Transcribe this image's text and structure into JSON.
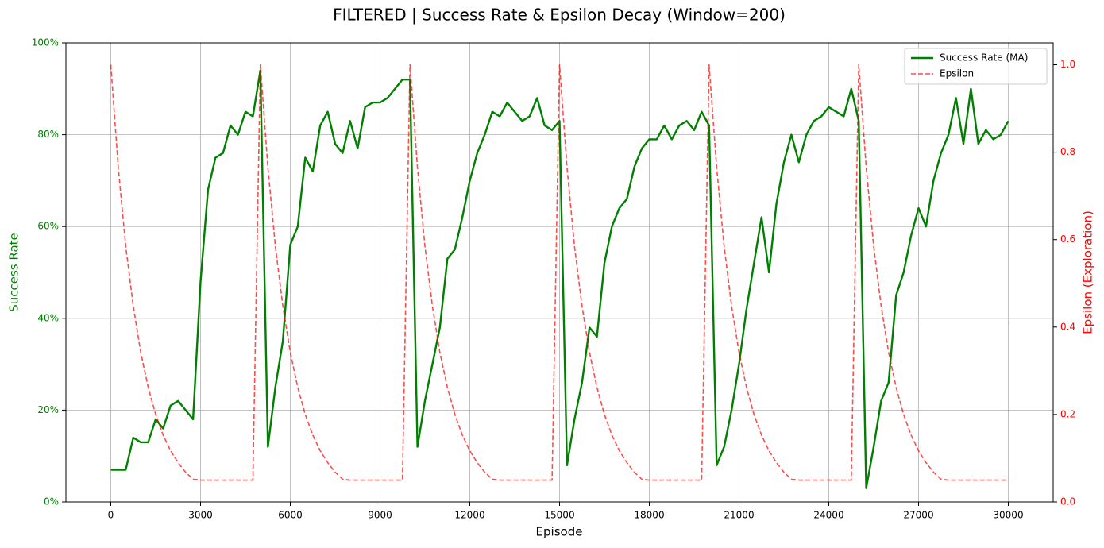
{
  "chart_data": {
    "type": "line",
    "title": "FILTERED | Success Rate & Epsilon Decay (Window=200)",
    "xlabel": "Episode",
    "ylabel": "Success Rate",
    "y2label": "Epsilon (Exploration)",
    "x": [
      0,
      250,
      500,
      750,
      1000,
      1250,
      1500,
      1750,
      2000,
      2250,
      2500,
      2750,
      3000,
      3250,
      3500,
      3750,
      4000,
      4250,
      4500,
      4750,
      5000,
      5250,
      5500,
      5750,
      6000,
      6250,
      6500,
      6750,
      7000,
      7250,
      7500,
      7750,
      8000,
      8250,
      8500,
      8750,
      9000,
      9250,
      9500,
      9750,
      10000,
      10250,
      10500,
      10750,
      11000,
      11250,
      11500,
      11750,
      12000,
      12250,
      12500,
      12750,
      13000,
      13250,
      13500,
      13750,
      14000,
      14250,
      14500,
      14750,
      15000,
      15250,
      15500,
      15750,
      16000,
      16250,
      16500,
      16750,
      17000,
      17250,
      17500,
      17750,
      18000,
      18250,
      18500,
      18750,
      19000,
      19250,
      19500,
      19750,
      20000,
      20250,
      20500,
      20750,
      21000,
      21250,
      21500,
      21750,
      22000,
      22250,
      22500,
      22750,
      23000,
      23250,
      23500,
      23750,
      24000,
      24250,
      24500,
      24750,
      25000,
      25250,
      25500,
      25750,
      26000,
      26250,
      26500,
      26750,
      27000,
      27250,
      27500,
      27750,
      28000,
      28250,
      28500,
      28750,
      29000,
      29250,
      29500,
      29750,
      30000
    ],
    "series": [
      {
        "name": "Success Rate (MA)",
        "color": "#008000",
        "line_style": "solid",
        "axis": "y",
        "values": [
          7,
          7,
          7,
          14,
          13,
          13,
          18,
          16,
          21,
          22,
          20,
          18,
          48,
          68,
          75,
          76,
          82,
          80,
          85,
          84,
          94,
          12,
          25,
          35,
          56,
          60,
          75,
          72,
          82,
          85,
          78,
          76,
          83,
          77,
          86,
          87,
          87,
          88,
          90,
          92,
          92,
          12,
          22,
          30,
          38,
          53,
          55,
          62,
          70,
          76,
          80,
          85,
          84,
          87,
          85,
          83,
          84,
          88,
          82,
          81,
          83,
          8,
          18,
          26,
          38,
          36,
          52,
          60,
          64,
          66,
          73,
          77,
          79,
          79,
          82,
          79,
          82,
          83,
          81,
          85,
          82,
          8,
          12,
          20,
          30,
          42,
          52,
          62,
          50,
          65,
          74,
          80,
          74,
          80,
          83,
          84,
          86,
          85,
          84,
          90,
          83,
          3,
          12,
          22,
          26,
          45,
          50,
          58,
          64,
          60,
          70,
          76,
          80,
          88,
          78,
          90,
          78,
          81,
          79,
          80,
          83
        ]
      },
      {
        "name": "Epsilon",
        "color": "#ff0000",
        "line_style": "dashed",
        "axis": "y2",
        "values": [
          1,
          0.765,
          0.585,
          0.448,
          0.342,
          0.262,
          0.2,
          0.153,
          0.117,
          0.09,
          0.068,
          0.052,
          0.05,
          0.05,
          0.05,
          0.05,
          0.05,
          0.05,
          0.05,
          0.05,
          1,
          0.765,
          0.585,
          0.448,
          0.342,
          0.262,
          0.2,
          0.153,
          0.117,
          0.09,
          0.068,
          0.052,
          0.05,
          0.05,
          0.05,
          0.05,
          0.05,
          0.05,
          0.05,
          0.05,
          1,
          0.765,
          0.585,
          0.448,
          0.342,
          0.262,
          0.2,
          0.153,
          0.117,
          0.09,
          0.068,
          0.052,
          0.05,
          0.05,
          0.05,
          0.05,
          0.05,
          0.05,
          0.05,
          0.05,
          1,
          0.765,
          0.585,
          0.448,
          0.342,
          0.262,
          0.2,
          0.153,
          0.117,
          0.09,
          0.068,
          0.052,
          0.05,
          0.05,
          0.05,
          0.05,
          0.05,
          0.05,
          0.05,
          0.05,
          1,
          0.765,
          0.585,
          0.448,
          0.342,
          0.262,
          0.2,
          0.153,
          0.117,
          0.09,
          0.068,
          0.052,
          0.05,
          0.05,
          0.05,
          0.05,
          0.05,
          0.05,
          0.05,
          0.05,
          1,
          0.765,
          0.585,
          0.448,
          0.342,
          0.262,
          0.2,
          0.153,
          0.117,
          0.09,
          0.068,
          0.052,
          0.05,
          0.05,
          0.05,
          0.05,
          0.05,
          0.05,
          0.05,
          0.05,
          0.05
        ]
      }
    ],
    "xlim": [
      -1500,
      31500
    ],
    "xticks": [
      0,
      3000,
      6000,
      9000,
      12000,
      15000,
      18000,
      21000,
      24000,
      27000,
      30000
    ],
    "ylim": [
      0,
      100
    ],
    "yticks": [
      {
        "value": 0,
        "label": "0%"
      },
      {
        "value": 20,
        "label": "20%"
      },
      {
        "value": 40,
        "label": "40%"
      },
      {
        "value": 60,
        "label": "60%"
      },
      {
        "value": 80,
        "label": "80%"
      },
      {
        "value": 100,
        "label": "100%"
      }
    ],
    "y2lim": [
      0,
      1.05
    ],
    "y2ticks": [
      {
        "value": 0,
        "label": "0.0"
      },
      {
        "value": 0.2,
        "label": "0.2"
      },
      {
        "value": 0.4,
        "label": "0.4"
      },
      {
        "value": 0.6,
        "label": "0.6"
      },
      {
        "value": 0.8,
        "label": "0.8"
      },
      {
        "value": 1,
        "label": "1.0"
      }
    ],
    "grid": true,
    "legend": "upper right"
  }
}
